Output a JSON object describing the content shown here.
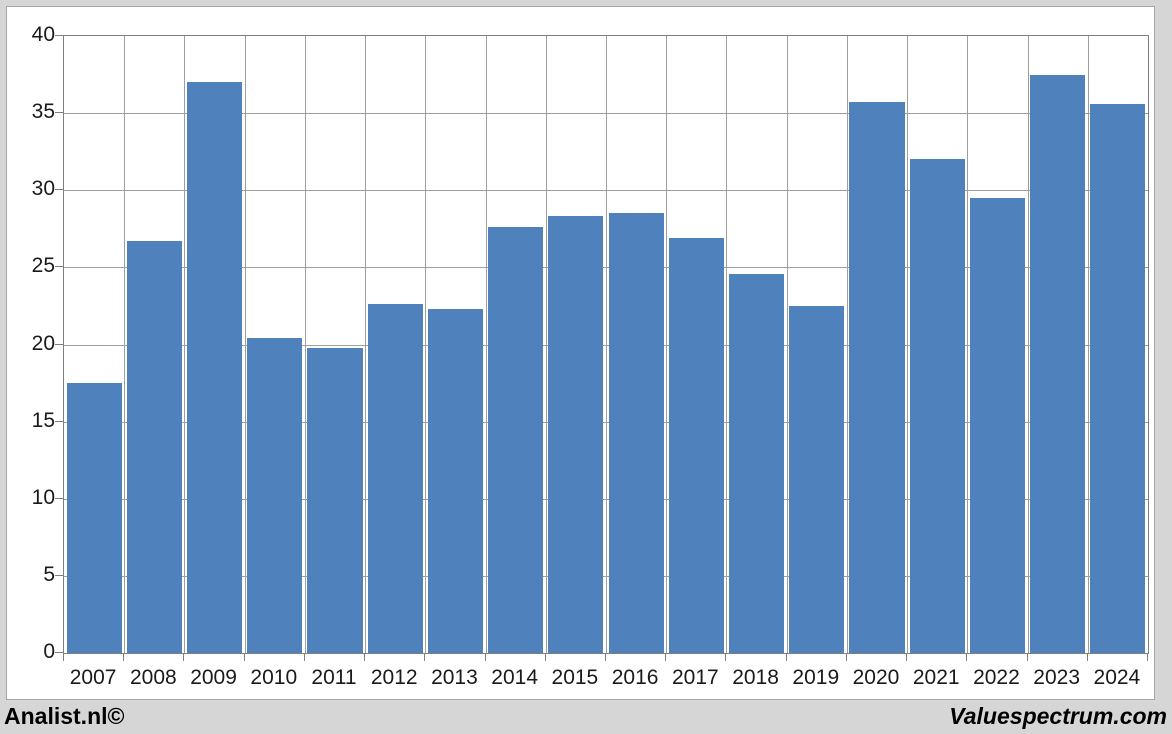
{
  "chart_data": {
    "type": "bar",
    "title": "",
    "xlabel": "",
    "ylabel": "",
    "categories": [
      "2007",
      "2008",
      "2009",
      "2010",
      "2011",
      "2012",
      "2013",
      "2014",
      "2015",
      "2016",
      "2017",
      "2018",
      "2019",
      "2020",
      "2021",
      "2022",
      "2023",
      "2024"
    ],
    "values": [
      17.5,
      26.7,
      37.0,
      20.4,
      19.8,
      22.6,
      22.3,
      27.6,
      28.3,
      28.5,
      26.9,
      24.6,
      22.5,
      35.7,
      32.0,
      29.5,
      37.5,
      35.6
    ],
    "ylim": [
      0,
      40
    ],
    "yticks": [
      0,
      5,
      10,
      15,
      20,
      25,
      30,
      35,
      40
    ],
    "grid": true,
    "legend_position": "none"
  },
  "footer": {
    "left": "Analist.nl©",
    "right": "Valuespectrum.com"
  },
  "colors": {
    "page_background": "#d6d6d6",
    "chart_background": "#ffffff",
    "bar": "#4f81bd",
    "gridline": "#9e9e9e",
    "axis": "#7f7f7f",
    "frame_border": "#a6a6a6",
    "label_text": "#1a1a1a",
    "footer_text": "#000000"
  }
}
